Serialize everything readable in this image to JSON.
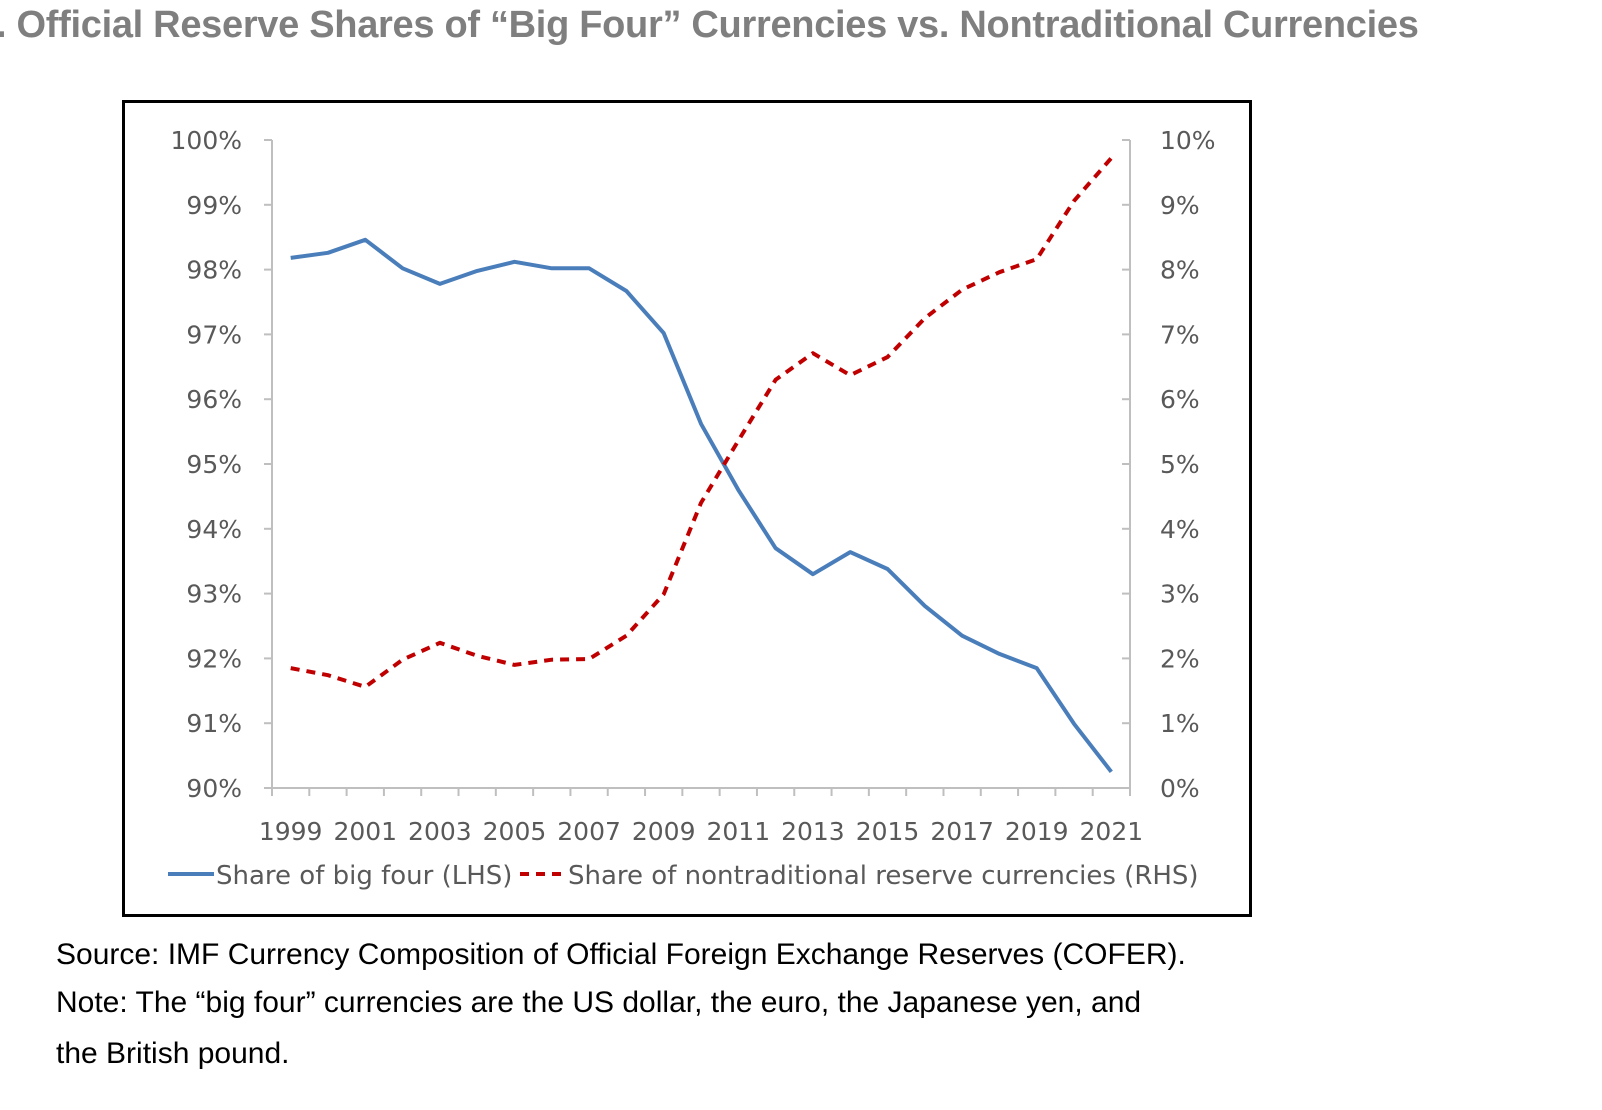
{
  "title": ". Official Reserve Shares of “Big Four” Currencies vs. Nontraditional Currencies",
  "source": "Source: IMF Currency Composition of Official Foreign Exchange Reserves (COFER).",
  "note_line1": "Note: The “big four” currencies are the US dollar, the euro, the Japanese yen, and",
  "note_line2": "the British pound.",
  "chart_data": {
    "type": "line",
    "x": [
      1999,
      2000,
      2001,
      2002,
      2003,
      2004,
      2005,
      2006,
      2007,
      2008,
      2009,
      2010,
      2011,
      2012,
      2013,
      2014,
      2015,
      2016,
      2017,
      2018,
      2019,
      2020,
      2021
    ],
    "x_tick_labels": [
      "1999",
      "2001",
      "2003",
      "2005",
      "2007",
      "2009",
      "2011",
      "2013",
      "2015",
      "2017",
      "2019",
      "2021"
    ],
    "y_left": {
      "range": [
        90,
        100
      ],
      "tick_labels": [
        "90%",
        "91%",
        "92%",
        "93%",
        "94%",
        "95%",
        "96%",
        "97%",
        "98%",
        "99%",
        "100%"
      ]
    },
    "y_right": {
      "range": [
        0,
        10
      ],
      "tick_labels": [
        "0%",
        "1%",
        "2%",
        "3%",
        "4%",
        "5%",
        "6%",
        "7%",
        "8%",
        "9%",
        "10%"
      ]
    },
    "grid": false,
    "legend_placement": "bottom",
    "series": [
      {
        "name": "Share of big four (LHS)",
        "axis": "left",
        "color": "#4a7ebb",
        "style": "solid",
        "values": [
          98.18,
          98.26,
          98.46,
          98.02,
          97.78,
          97.98,
          98.12,
          98.02,
          98.02,
          97.67,
          97.02,
          95.62,
          94.6,
          93.7,
          93.3,
          93.64,
          93.38,
          92.81,
          92.35,
          92.07,
          91.85,
          90.99,
          90.25
        ]
      },
      {
        "name": "Share of nontraditional reserve currencies (RHS)",
        "axis": "right",
        "color": "#c00000",
        "style": "dashed",
        "values": [
          1.85,
          1.74,
          1.56,
          1.98,
          2.24,
          2.04,
          1.9,
          1.98,
          1.99,
          2.35,
          2.99,
          4.4,
          5.36,
          6.3,
          6.71,
          6.37,
          6.65,
          7.25,
          7.69,
          7.96,
          8.16,
          9.06,
          9.72
        ]
      }
    ]
  }
}
